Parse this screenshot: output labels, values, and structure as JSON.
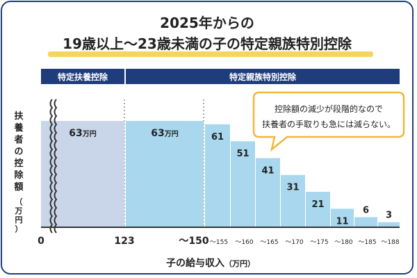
{
  "title": {
    "line1": "2025年からの",
    "line2": "19歳以上～23歳未満の子の特定親族特別控除"
  },
  "bands": {
    "left": "特定扶養控除",
    "right": "特定親族特別控除"
  },
  "callout": {
    "line1": "控除額の減少が段階的なので",
    "line2": "扶養者の手取りも急には減らない。"
  },
  "colors": {
    "navy": "#1f3d7a",
    "bar_light": "#a9d8ee",
    "bar_grey": "#c9d5e8",
    "bubble_border": "#f2b63a",
    "underline": "#f6d55c"
  },
  "chart_data": {
    "type": "bar",
    "ylabel_main": "扶養者の控除額",
    "ylabel_unit": "（万円）",
    "xlabel_main": "子の給与収入",
    "xlabel_unit": "（万円）",
    "origin_label": "0",
    "unit_suffix": "万円",
    "ylim": [
      0,
      70
    ],
    "bars": [
      {
        "range_label": "0〜123",
        "value": 63,
        "label": "63",
        "group": "特定扶養控除"
      },
      {
        "range_label": "123〜150",
        "value": 63,
        "label": "63",
        "group": "特定親族特別控除"
      },
      {
        "range_label": "～155",
        "value": 61,
        "label": "61",
        "group": "特定親族特別控除"
      },
      {
        "range_label": "～160",
        "value": 51,
        "label": "51",
        "group": "特定親族特別控除"
      },
      {
        "range_label": "～165",
        "value": 41,
        "label": "41",
        "group": "特定親族特別控除"
      },
      {
        "range_label": "～170",
        "value": 31,
        "label": "31",
        "group": "特定親族特別控除"
      },
      {
        "range_label": "～175",
        "value": 21,
        "label": "21",
        "group": "特定親族特別控除"
      },
      {
        "range_label": "～180",
        "value": 11,
        "label": "11",
        "group": "特定親族特別控除"
      },
      {
        "range_label": "～185",
        "value": 6,
        "label": "6",
        "group": "特定親族特別控除"
      },
      {
        "range_label": "～188",
        "value": 3,
        "label": "3",
        "group": "特定親族特別控除"
      }
    ],
    "x_major_ticks": [
      "123",
      "～150"
    ]
  }
}
